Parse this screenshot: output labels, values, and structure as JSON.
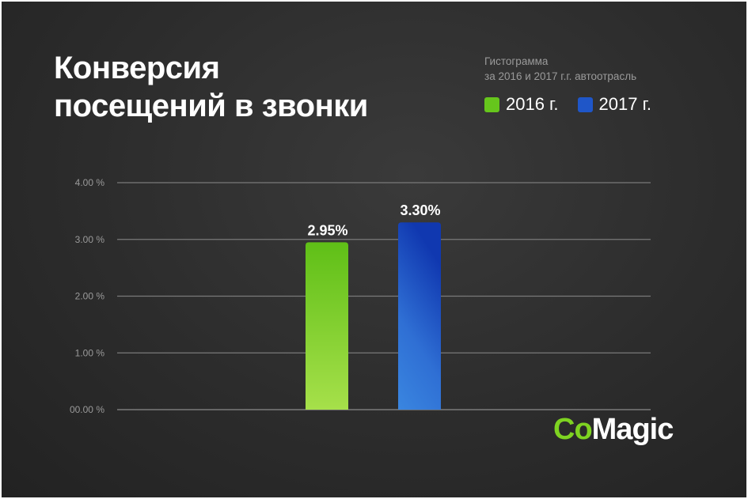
{
  "title": {
    "line1": "Конверсия",
    "line2": "посещений в звонки"
  },
  "subtitle": {
    "line1": "Гистограмма",
    "line2": "за 2016 и 2017 г.г. автоотрасль"
  },
  "logo": {
    "part1": "Co",
    "part2": "Magic"
  },
  "colors": {
    "green": "#66c61c",
    "blue": "#1f56c8",
    "background": "#2c2c2c"
  },
  "chart_data": {
    "type": "bar",
    "title": "Конверсия посещений в звонки",
    "subtitle": "Гистограмма за 2016 и 2017 г.г. автоотрасль",
    "categories": [
      "2016 г.",
      "2017 г."
    ],
    "series": [
      {
        "name": "2016 г.",
        "values": [
          2.95,
          null
        ],
        "color": "#66c61c"
      },
      {
        "name": "2017 г.",
        "values": [
          null,
          3.3
        ],
        "color": "#1f56c8"
      }
    ],
    "values": [
      2.95,
      3.3
    ],
    "data_labels": [
      "2.95%",
      "3.30%"
    ],
    "yticks": [
      4.0,
      3.0,
      2.0,
      1.0,
      0.0
    ],
    "ytick_labels": [
      "4.00 %",
      "3.00 %",
      "2.00 %",
      "1.00 %",
      "00.00 %"
    ],
    "ylim": [
      0,
      4
    ],
    "grid": true,
    "legend_position": "top-right"
  }
}
